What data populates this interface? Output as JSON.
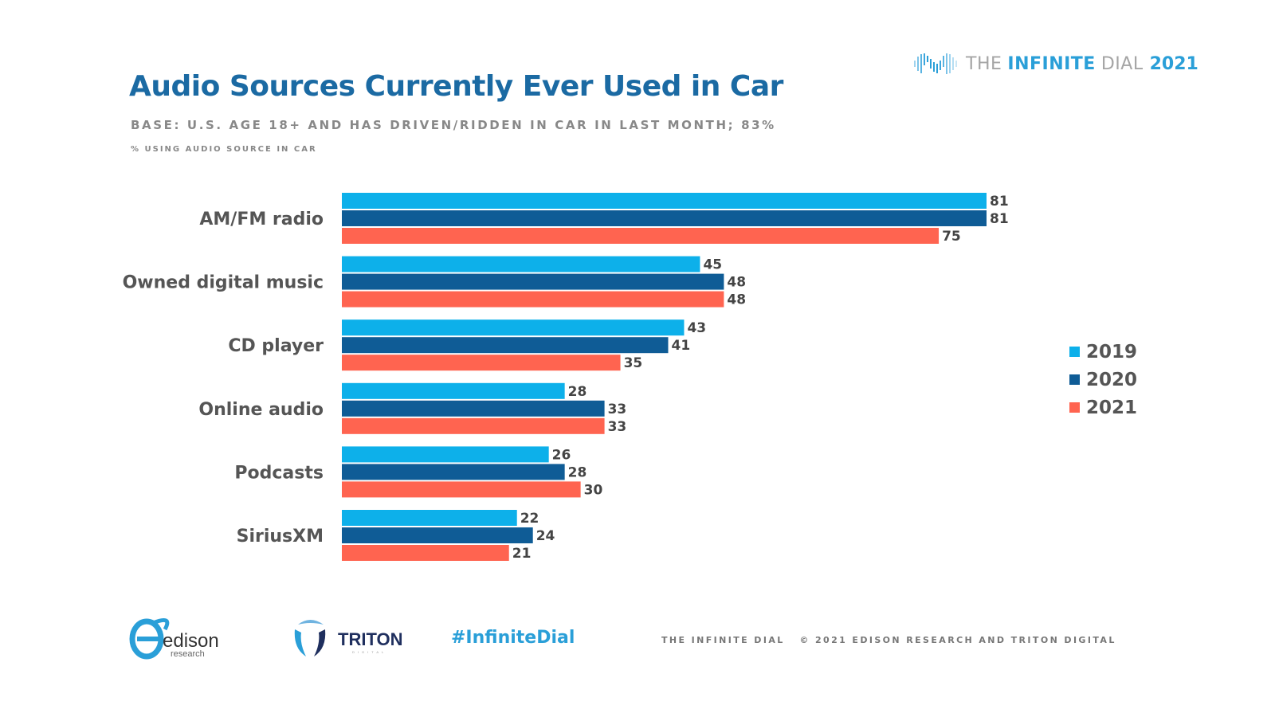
{
  "header": {
    "title": "Audio Sources Currently Ever Used in Car",
    "base_note": "BASE: U.S. AGE 18+ AND HAS DRIVEN/RIDDEN IN CAR IN LAST MONTH; 83%",
    "subtitle": "% USING AUDIO SOURCE IN CAR",
    "brand": {
      "the": "THE",
      "infinite": "INFINITE",
      "dial": "DIAL",
      "year": "2021",
      "logo_icon": "infinity-waveform-icon"
    }
  },
  "footer": {
    "edison_logo": {
      "name": "edison",
      "sub": "research"
    },
    "triton_logo": {
      "name": "TRITON",
      "sub": "DIGITAL"
    },
    "hashtag": "#InfiniteDial",
    "copyright": "THE INFINITE DIAL   © 2021 EDISON RESEARCH AND TRITON DIGITAL"
  },
  "colors": {
    "2019": "#0db0ea",
    "2020": "#0f5c96",
    "2021": "#ff6450",
    "label": "#555555",
    "value": "#444444"
  },
  "chart_data": {
    "type": "bar",
    "orientation": "horizontal",
    "title": "Audio Sources Currently Ever Used in Car",
    "subtitle": "% USING AUDIO SOURCE IN CAR",
    "xlabel": "",
    "ylabel": "",
    "xlim": [
      0,
      81
    ],
    "grid": false,
    "legend_position": "right",
    "categories": [
      "AM/FM radio",
      "Owned digital music",
      "CD player",
      "Online audio",
      "Podcasts",
      "SiriusXM"
    ],
    "series": [
      {
        "name": "2019",
        "color": "#0db0ea",
        "values": [
          81,
          45,
          43,
          28,
          26,
          22
        ]
      },
      {
        "name": "2020",
        "color": "#0f5c96",
        "values": [
          81,
          48,
          41,
          33,
          28,
          24
        ]
      },
      {
        "name": "2021",
        "color": "#ff6450",
        "values": [
          75,
          48,
          35,
          33,
          30,
          21
        ]
      }
    ]
  }
}
